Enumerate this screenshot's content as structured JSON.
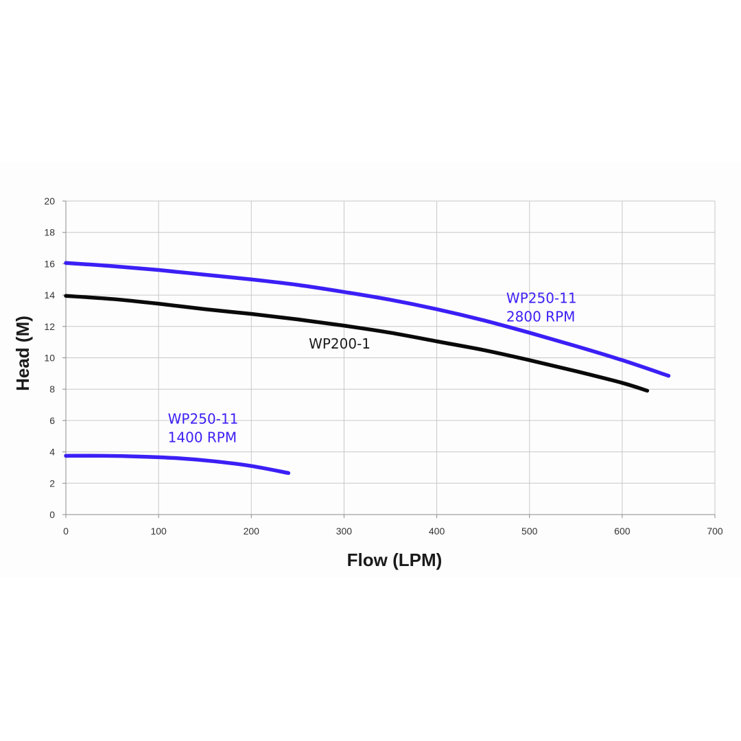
{
  "chart_data": {
    "type": "line",
    "title": "",
    "xlabel": "Flow (LPM)",
    "ylabel": "Head (M)",
    "xlim": [
      0,
      700
    ],
    "ylim": [
      0,
      20
    ],
    "x_ticks": [
      0,
      100,
      200,
      300,
      400,
      500,
      600,
      700
    ],
    "y_ticks": [
      0,
      2,
      4,
      6,
      8,
      10,
      12,
      14,
      16,
      18,
      20
    ],
    "grid": true,
    "legend": "none",
    "colors": {
      "blue": "#3b1ff5",
      "black": "#0a0a0a"
    },
    "series": [
      {
        "color": "#3b1ff5",
        "points": [
          [
            0,
            16.05
          ],
          [
            50,
            15.85
          ],
          [
            100,
            15.6
          ],
          [
            150,
            15.3
          ],
          [
            200,
            15.0
          ],
          [
            250,
            14.65
          ],
          [
            300,
            14.2
          ],
          [
            350,
            13.7
          ],
          [
            400,
            13.1
          ],
          [
            450,
            12.4
          ],
          [
            500,
            11.6
          ],
          [
            550,
            10.75
          ],
          [
            600,
            9.85
          ],
          [
            650,
            8.85
          ]
        ]
      },
      {
        "color": "#0a0a0a",
        "points": [
          [
            0,
            13.95
          ],
          [
            50,
            13.75
          ],
          [
            100,
            13.45
          ],
          [
            150,
            13.1
          ],
          [
            200,
            12.8
          ],
          [
            250,
            12.45
          ],
          [
            300,
            12.05
          ],
          [
            350,
            11.6
          ],
          [
            400,
            11.05
          ],
          [
            450,
            10.5
          ],
          [
            500,
            9.85
          ],
          [
            550,
            9.15
          ],
          [
            600,
            8.4
          ],
          [
            627,
            7.9
          ]
        ]
      },
      {
        "color": "#3b1ff5",
        "points": [
          [
            0,
            3.75
          ],
          [
            40,
            3.75
          ],
          [
            80,
            3.7
          ],
          [
            120,
            3.6
          ],
          [
            160,
            3.4
          ],
          [
            200,
            3.1
          ],
          [
            240,
            2.65
          ]
        ]
      }
    ],
    "annotations": [
      {
        "lines": [
          "WP250-11",
          "2800 RPM"
        ],
        "x": 475,
        "y": 13.5,
        "color": "#3b1ff5"
      },
      {
        "lines": [
          "WP200-1"
        ],
        "x": 262,
        "y": 10.6,
        "color": "#1a1a1a"
      },
      {
        "lines": [
          "WP250-11",
          "1400 RPM"
        ],
        "x": 110,
        "y": 5.8,
        "color": "#3b1ff5"
      }
    ]
  }
}
